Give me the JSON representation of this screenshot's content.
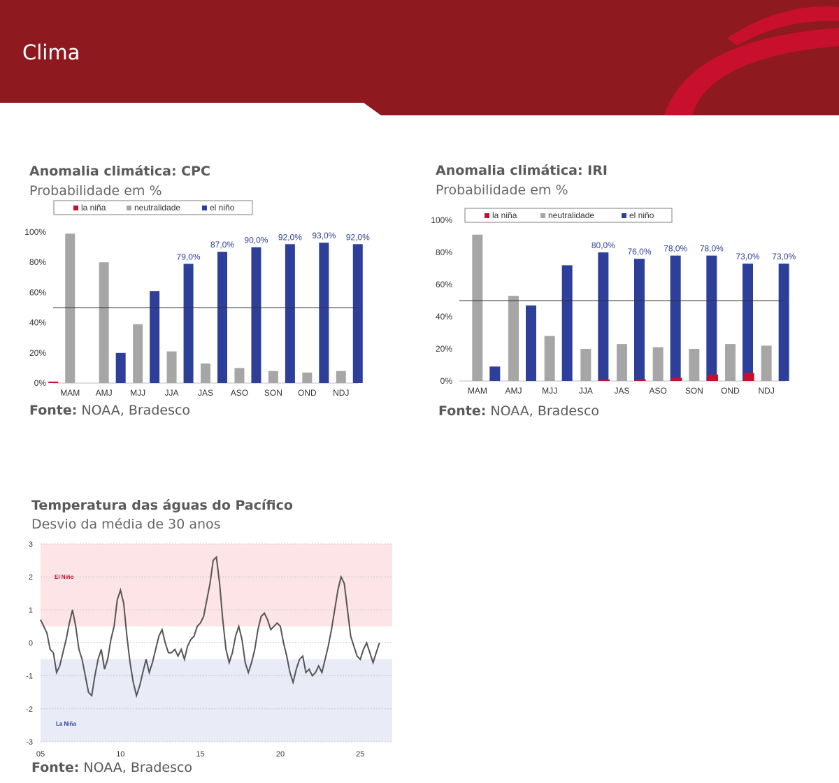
{
  "page": {
    "title": "Clima"
  },
  "colors": {
    "brand_red": "#8e1a1f",
    "accent_red": "#c8102e",
    "la_nina": "#c8102e",
    "neutral": "#a6a6a6",
    "el_nino": "#2e3f9a",
    "label_blue": "#2e3f9a"
  },
  "cpc": {
    "title": "Anomalia climática: CPC",
    "subtitle": "Probabilidade em %",
    "source_bold": "Fonte:",
    "source_text": " NOAA, Bradesco"
  },
  "iri": {
    "title": "Anomalia climática: IRI",
    "subtitle": "Probabilidade em %",
    "source_bold": "Fonte:",
    "source_text": " NOAA, Bradesco"
  },
  "pacific": {
    "title": "Temperatura das águas do Pacífico",
    "subtitle": "Desvio da média de 30 anos",
    "source_bold": "Fonte:",
    "source_text": " NOAA, Bradesco"
  },
  "chart_data": [
    {
      "id": "cpc",
      "type": "bar",
      "categories": [
        "MAM",
        "AMJ",
        "MJJ",
        "JJA",
        "JAS",
        "ASO",
        "SON",
        "OND",
        "NDJ"
      ],
      "series": [
        {
          "name": "la niña",
          "values": [
            1,
            0,
            0,
            0,
            0,
            0,
            0,
            0,
            0
          ]
        },
        {
          "name": "neutralidade",
          "values": [
            99,
            80,
            39,
            21,
            13,
            10,
            8,
            7,
            8
          ]
        },
        {
          "name": "el niño",
          "values": [
            0,
            20,
            61,
            79,
            87,
            90,
            92,
            93,
            92
          ]
        }
      ],
      "data_labels": [
        "",
        "",
        "",
        "79,0%",
        "87,0%",
        "90,0%",
        "92,0%",
        "93,0%",
        "92,0%"
      ],
      "yticks": [
        "0%",
        "20%",
        "40%",
        "60%",
        "80%",
        "100%"
      ],
      "ylim": [
        0,
        100
      ],
      "reference_line": 50,
      "legend_position": "top"
    },
    {
      "id": "iri",
      "type": "bar",
      "categories": [
        "MAM",
        "AMJ",
        "MJJ",
        "JJA",
        "JAS",
        "ASO",
        "SON",
        "OND",
        "NDJ"
      ],
      "series": [
        {
          "name": "la niña",
          "values": [
            0,
            0,
            0,
            0,
            1,
            1,
            2,
            4,
            5
          ]
        },
        {
          "name": "neutralidade",
          "values": [
            91,
            53,
            28,
            20,
            23,
            21,
            20,
            23,
            22
          ]
        },
        {
          "name": "el niño",
          "values": [
            9,
            47,
            72,
            80,
            76,
            78,
            78,
            73,
            73
          ]
        }
      ],
      "data_labels": [
        "",
        "",
        "",
        "80,0%",
        "76,0%",
        "78,0%",
        "78,0%",
        "73,0%",
        "73,0%"
      ],
      "yticks": [
        "0%",
        "20%",
        "40%",
        "60%",
        "80%",
        "100%"
      ],
      "ylim": [
        0,
        100
      ],
      "reference_line": 50,
      "legend_position": "top"
    },
    {
      "id": "pacific",
      "type": "line",
      "xticks": [
        {
          "label": "05",
          "value": 2005
        },
        {
          "label": "10",
          "value": 2010
        },
        {
          "label": "15",
          "value": 2015
        },
        {
          "label": "20",
          "value": 2020
        },
        {
          "label": "25",
          "value": 2025
        }
      ],
      "yticks": [
        "-3",
        "-2",
        "-1",
        "0",
        "1",
        "2",
        "3"
      ],
      "xlim": [
        2005,
        2027
      ],
      "ylim": [
        -3,
        3
      ],
      "bands": [
        {
          "label": "El Niño",
          "from": 0.5,
          "to": 3,
          "color": "#fde4e6",
          "label_color": "#c8102e"
        },
        {
          "label": "La Niña",
          "from": -3,
          "to": -0.5,
          "color": "#e9ecf7",
          "label_color": "#2e3f9a"
        }
      ],
      "series": [
        {
          "values": [
            [
              2005.0,
              0.7
            ],
            [
              2005.2,
              0.5
            ],
            [
              2005.4,
              0.3
            ],
            [
              2005.6,
              -0.2
            ],
            [
              2005.8,
              -0.3
            ],
            [
              2006.0,
              -0.9
            ],
            [
              2006.2,
              -0.7
            ],
            [
              2006.4,
              -0.3
            ],
            [
              2006.6,
              0.1
            ],
            [
              2006.8,
              0.6
            ],
            [
              2007.0,
              1.0
            ],
            [
              2007.2,
              0.5
            ],
            [
              2007.4,
              -0.2
            ],
            [
              2007.6,
              -0.5
            ],
            [
              2007.8,
              -1.0
            ],
            [
              2008.0,
              -1.5
            ],
            [
              2008.2,
              -1.6
            ],
            [
              2008.4,
              -1.0
            ],
            [
              2008.6,
              -0.5
            ],
            [
              2008.8,
              -0.2
            ],
            [
              2009.0,
              -0.8
            ],
            [
              2009.2,
              -0.5
            ],
            [
              2009.4,
              0.1
            ],
            [
              2009.6,
              0.5
            ],
            [
              2009.8,
              1.3
            ],
            [
              2010.0,
              1.6
            ],
            [
              2010.2,
              1.2
            ],
            [
              2010.4,
              0.2
            ],
            [
              2010.6,
              -0.6
            ],
            [
              2010.8,
              -1.2
            ],
            [
              2011.0,
              -1.6
            ],
            [
              2011.2,
              -1.3
            ],
            [
              2011.4,
              -0.9
            ],
            [
              2011.6,
              -0.5
            ],
            [
              2011.8,
              -0.9
            ],
            [
              2012.0,
              -0.6
            ],
            [
              2012.2,
              -0.2
            ],
            [
              2012.4,
              0.2
            ],
            [
              2012.6,
              0.4
            ],
            [
              2012.8,
              0.0
            ],
            [
              2013.0,
              -0.3
            ],
            [
              2013.2,
              -0.3
            ],
            [
              2013.4,
              -0.2
            ],
            [
              2013.6,
              -0.4
            ],
            [
              2013.8,
              -0.2
            ],
            [
              2014.0,
              -0.5
            ],
            [
              2014.2,
              -0.1
            ],
            [
              2014.4,
              0.1
            ],
            [
              2014.6,
              0.2
            ],
            [
              2014.8,
              0.5
            ],
            [
              2015.0,
              0.6
            ],
            [
              2015.2,
              0.8
            ],
            [
              2015.4,
              1.3
            ],
            [
              2015.6,
              1.8
            ],
            [
              2015.8,
              2.5
            ],
            [
              2016.0,
              2.6
            ],
            [
              2016.2,
              1.8
            ],
            [
              2016.4,
              0.7
            ],
            [
              2016.6,
              -0.2
            ],
            [
              2016.8,
              -0.6
            ],
            [
              2017.0,
              -0.3
            ],
            [
              2017.2,
              0.2
            ],
            [
              2017.4,
              0.5
            ],
            [
              2017.6,
              0.1
            ],
            [
              2017.8,
              -0.6
            ],
            [
              2018.0,
              -0.9
            ],
            [
              2018.2,
              -0.6
            ],
            [
              2018.4,
              -0.2
            ],
            [
              2018.6,
              0.4
            ],
            [
              2018.8,
              0.8
            ],
            [
              2019.0,
              0.9
            ],
            [
              2019.2,
              0.7
            ],
            [
              2019.4,
              0.4
            ],
            [
              2019.6,
              0.5
            ],
            [
              2019.8,
              0.6
            ],
            [
              2020.0,
              0.5
            ],
            [
              2020.2,
              0.0
            ],
            [
              2020.4,
              -0.4
            ],
            [
              2020.6,
              -0.9
            ],
            [
              2020.8,
              -1.2
            ],
            [
              2021.0,
              -0.8
            ],
            [
              2021.2,
              -0.5
            ],
            [
              2021.4,
              -0.4
            ],
            [
              2021.6,
              -0.9
            ],
            [
              2021.8,
              -0.8
            ],
            [
              2022.0,
              -1.0
            ],
            [
              2022.2,
              -0.9
            ],
            [
              2022.4,
              -0.7
            ],
            [
              2022.6,
              -0.9
            ],
            [
              2022.8,
              -0.5
            ],
            [
              2023.0,
              -0.1
            ],
            [
              2023.2,
              0.4
            ],
            [
              2023.4,
              1.0
            ],
            [
              2023.6,
              1.6
            ],
            [
              2023.8,
              2.0
            ],
            [
              2024.0,
              1.8
            ],
            [
              2024.2,
              1.0
            ],
            [
              2024.4,
              0.2
            ],
            [
              2024.6,
              -0.1
            ],
            [
              2024.8,
              -0.4
            ],
            [
              2025.0,
              -0.5
            ],
            [
              2025.2,
              -0.2
            ],
            [
              2025.4,
              0.0
            ],
            [
              2025.6,
              -0.3
            ],
            [
              2025.8,
              -0.6
            ],
            [
              2026.0,
              -0.3
            ],
            [
              2026.2,
              0.0
            ]
          ]
        }
      ]
    }
  ]
}
